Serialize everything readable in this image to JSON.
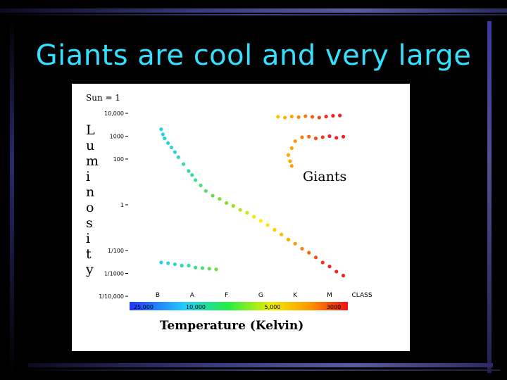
{
  "slide": {
    "title": "Giants are cool and very large"
  },
  "chart_data": {
    "type": "scatter",
    "title": "",
    "note": "Sun = 1",
    "ylabel": "Luminosity",
    "xlabel": "Temperature (Kelvin)",
    "ylog": true,
    "ylim": [
      0.0001,
      10000
    ],
    "y_ticks": [
      {
        "value": 10000,
        "label": "10,000"
      },
      {
        "value": 1000,
        "label": "1000"
      },
      {
        "value": 100,
        "label": "100"
      },
      {
        "value": 1,
        "label": "1"
      },
      {
        "value": 0.01,
        "label": "1/100"
      },
      {
        "value": 0.001,
        "label": "1/1000"
      },
      {
        "value": 0.0001,
        "label": "1/10,000"
      }
    ],
    "classes": [
      "B",
      "A",
      "F",
      "G",
      "K",
      "M"
    ],
    "class_axis_label": "CLASS",
    "temperature_labels": [
      "25,000",
      "10,000",
      "5,000",
      "3000"
    ],
    "annotation": "Giants",
    "colors": {
      "B": "#22ccff",
      "A": "#33dd99",
      "F": "#88dd22",
      "G": "#ffee00",
      "K": "#ff9900",
      "M": "#ee2222"
    },
    "groups": [
      {
        "group": "main-sequence",
        "points": [
          {
            "cls": 0.1,
            "y": 2000
          },
          {
            "cls": 0.15,
            "y": 1200
          },
          {
            "cls": 0.2,
            "y": 800
          },
          {
            "cls": 0.3,
            "y": 500
          },
          {
            "cls": 0.4,
            "y": 320
          },
          {
            "cls": 0.5,
            "y": 200
          },
          {
            "cls": 0.6,
            "y": 120
          },
          {
            "cls": 0.75,
            "y": 60
          },
          {
            "cls": 0.9,
            "y": 30
          },
          {
            "cls": 1.0,
            "y": 20
          },
          {
            "cls": 1.1,
            "y": 12
          },
          {
            "cls": 1.25,
            "y": 7
          },
          {
            "cls": 1.4,
            "y": 4
          },
          {
            "cls": 1.6,
            "y": 2.5
          },
          {
            "cls": 1.8,
            "y": 1.8
          },
          {
            "cls": 2.0,
            "y": 1.2
          },
          {
            "cls": 2.2,
            "y": 0.9
          },
          {
            "cls": 2.4,
            "y": 0.6
          },
          {
            "cls": 2.6,
            "y": 0.45
          },
          {
            "cls": 2.8,
            "y": 0.3
          },
          {
            "cls": 3.0,
            "y": 0.2
          },
          {
            "cls": 3.2,
            "y": 0.13
          },
          {
            "cls": 3.4,
            "y": 0.08
          },
          {
            "cls": 3.6,
            "y": 0.05
          },
          {
            "cls": 3.8,
            "y": 0.03
          },
          {
            "cls": 4.0,
            "y": 0.02
          },
          {
            "cls": 4.2,
            "y": 0.012
          },
          {
            "cls": 4.4,
            "y": 0.008
          },
          {
            "cls": 4.6,
            "y": 0.005
          },
          {
            "cls": 4.8,
            "y": 0.003
          },
          {
            "cls": 5.0,
            "y": 0.002
          },
          {
            "cls": 5.2,
            "y": 0.0012
          },
          {
            "cls": 5.4,
            "y": 0.0008
          }
        ]
      },
      {
        "group": "giants",
        "points": [
          {
            "cls": 3.5,
            "y": 7000
          },
          {
            "cls": 3.7,
            "y": 6500
          },
          {
            "cls": 3.9,
            "y": 7200
          },
          {
            "cls": 4.1,
            "y": 6800
          },
          {
            "cls": 4.3,
            "y": 7500
          },
          {
            "cls": 4.5,
            "y": 7000
          },
          {
            "cls": 4.7,
            "y": 6500
          },
          {
            "cls": 4.9,
            "y": 7200
          },
          {
            "cls": 5.1,
            "y": 7800
          },
          {
            "cls": 5.3,
            "y": 8000
          },
          {
            "cls": 4.2,
            "y": 900
          },
          {
            "cls": 4.4,
            "y": 950
          },
          {
            "cls": 4.6,
            "y": 800
          },
          {
            "cls": 4.8,
            "y": 900
          },
          {
            "cls": 5.0,
            "y": 1000
          },
          {
            "cls": 5.2,
            "y": 850
          },
          {
            "cls": 5.4,
            "y": 950
          },
          {
            "cls": 4.0,
            "y": 600
          },
          {
            "cls": 3.9,
            "y": 300
          },
          {
            "cls": 3.8,
            "y": 150
          },
          {
            "cls": 3.85,
            "y": 80
          },
          {
            "cls": 3.9,
            "y": 50
          }
        ]
      },
      {
        "group": "white-dwarfs",
        "points": [
          {
            "cls": 0.1,
            "y": 0.003
          },
          {
            "cls": 0.3,
            "y": 0.0028
          },
          {
            "cls": 0.5,
            "y": 0.0025
          },
          {
            "cls": 0.7,
            "y": 0.0022
          },
          {
            "cls": 0.9,
            "y": 0.0022
          },
          {
            "cls": 1.1,
            "y": 0.0018
          },
          {
            "cls": 1.3,
            "y": 0.0017
          },
          {
            "cls": 1.5,
            "y": 0.0016
          },
          {
            "cls": 1.7,
            "y": 0.0015
          }
        ]
      }
    ]
  }
}
